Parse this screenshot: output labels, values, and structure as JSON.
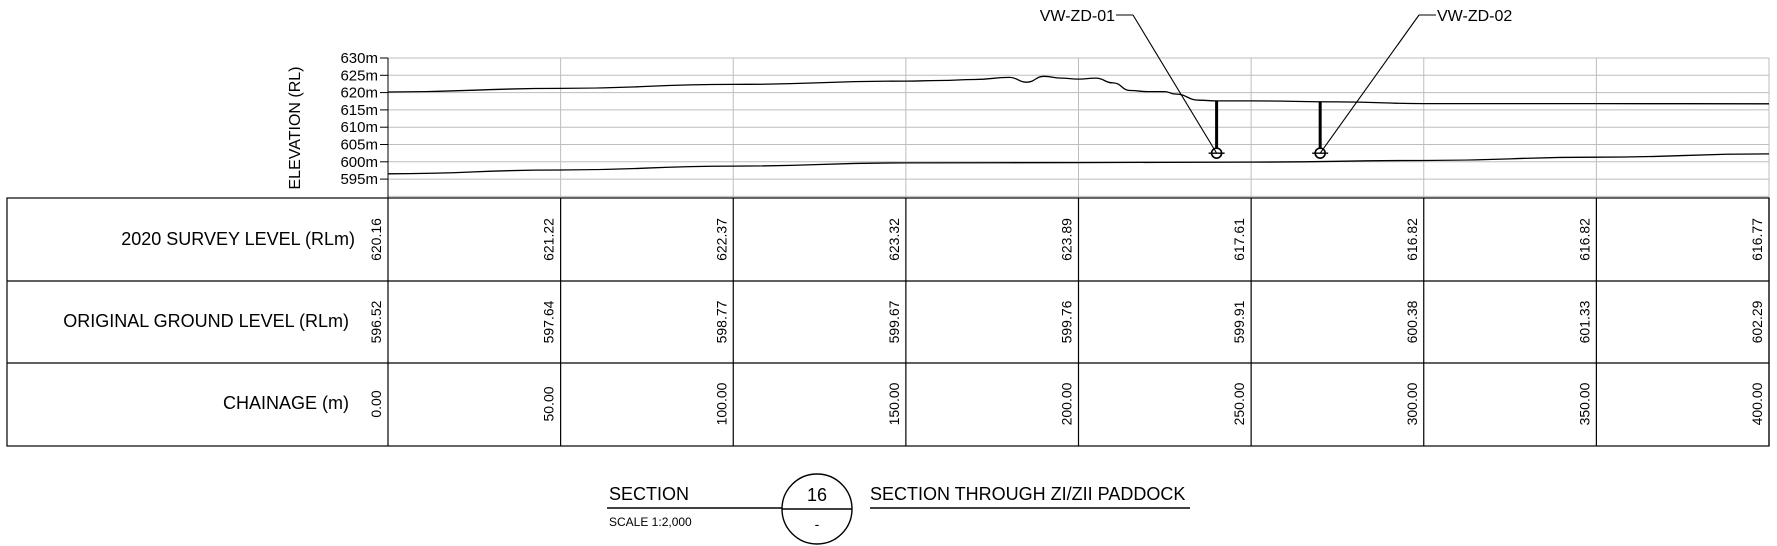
{
  "elevation_axis": {
    "label": "ELEVATION (RL)",
    "ticks": [
      "630m",
      "625m",
      "620m",
      "615m",
      "610m",
      "605m",
      "600m",
      "595m"
    ]
  },
  "chart_data": {
    "type": "line",
    "xlabel": "CHAINAGE (m)",
    "ylabel": "ELEVATION (RL)",
    "xlim": [
      0,
      400
    ],
    "ylim": [
      595,
      630
    ],
    "grid": true,
    "series": [
      {
        "name": "2020 SURVEY LEVEL (RLm)",
        "x": [
          0,
          50,
          100,
          150,
          160,
          170,
          180,
          185,
          190,
          195,
          200,
          205,
          210,
          215,
          220,
          225,
          228,
          235,
          240,
          250,
          275,
          300,
          350,
          400
        ],
        "y": [
          620.16,
          621.22,
          622.37,
          623.32,
          623.5,
          623.8,
          624.4,
          623.0,
          624.7,
          624.2,
          623.89,
          624.2,
          622.8,
          620.6,
          620.3,
          620.3,
          619.6,
          617.8,
          617.61,
          617.61,
          617.3,
          616.82,
          616.82,
          616.77
        ]
      },
      {
        "name": "ORIGINAL GROUND LEVEL (RLm)",
        "x": [
          0,
          50,
          100,
          150,
          200,
          250,
          300,
          350,
          400
        ],
        "y": [
          596.52,
          597.64,
          598.77,
          599.67,
          599.76,
          599.91,
          600.38,
          601.33,
          602.29
        ]
      }
    ],
    "annotations": [
      {
        "label": "VW-ZD-01",
        "chainage": 240,
        "top_rl": 617.6,
        "bottom_rl": 602.5
      },
      {
        "label": "VW-ZD-02",
        "chainage": 270,
        "top_rl": 617.4,
        "bottom_rl": 602.5
      }
    ]
  },
  "table": {
    "rows": [
      {
        "label": "2020 SURVEY LEVEL (RLm)",
        "values": [
          "620.16",
          "621.22",
          "622.37",
          "623.32",
          "623.89",
          "617.61",
          "616.82",
          "616.82",
          "616.77"
        ]
      },
      {
        "label": "ORIGINAL GROUND LEVEL (RLm)",
        "values": [
          "596.52",
          "597.64",
          "598.77",
          "599.67",
          "599.76",
          "599.91",
          "600.38",
          "601.33",
          "602.29"
        ]
      },
      {
        "label": "CHAINAGE (m)",
        "values": [
          "0.00",
          "50.00",
          "100.00",
          "150.00",
          "200.00",
          "250.00",
          "300.00",
          "350.00",
          "400.00"
        ]
      }
    ]
  },
  "title_block": {
    "section_label": "SECTION",
    "scale": "SCALE 1:2,000",
    "number": "16",
    "sheet_ref": "-",
    "title": "SECTION THROUGH ZI/ZII PADDOCK"
  }
}
